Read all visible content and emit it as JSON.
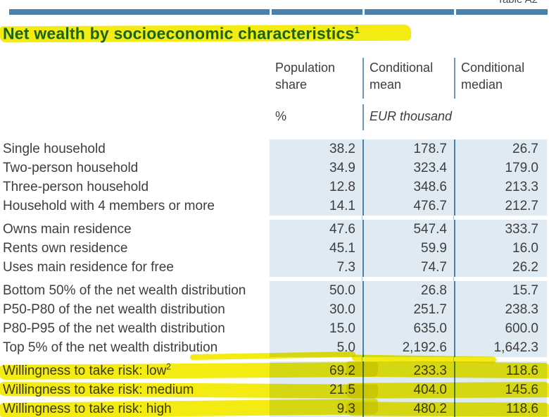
{
  "meta": {
    "table_ref": "Table A2"
  },
  "title": {
    "text": "Net wealth by socioeconomic characteristics",
    "footnote_marker": "1"
  },
  "header": {
    "columns": [
      {
        "label": "Population share"
      },
      {
        "label": "Conditional mean"
      },
      {
        "label": "Conditional median"
      }
    ],
    "units": {
      "population_share": "%",
      "amounts": "EUR thousand"
    }
  },
  "colors": {
    "accent_blue": "#4a81ab",
    "cell_shade_blue": "#dfeaf2",
    "divider_blue": "#6d98ba",
    "title_blue": "#1c6ca5",
    "text_gray": "#3e3e3d",
    "highlight_yellow": "#f3eb12"
  },
  "table": {
    "groups": [
      {
        "rows": [
          {
            "label": "Single household",
            "sup": "",
            "values": [
              "38.2",
              "178.7",
              "26.7"
            ],
            "highlight": false
          },
          {
            "label": "Two-person household",
            "sup": "",
            "values": [
              "34.9",
              "323.4",
              "179.0"
            ],
            "highlight": false
          },
          {
            "label": "Three-person household",
            "sup": "",
            "values": [
              "12.8",
              "348.6",
              "213.3"
            ],
            "highlight": false
          },
          {
            "label": "Household with 4 members or more",
            "sup": "",
            "values": [
              "14.1",
              "476.7",
              "212.7"
            ],
            "highlight": false
          }
        ]
      },
      {
        "rows": [
          {
            "label": "Owns main residence",
            "sup": "",
            "values": [
              "47.6",
              "547.4",
              "333.7"
            ],
            "highlight": false
          },
          {
            "label": "Rents own residence",
            "sup": "",
            "values": [
              "45.1",
              "59.9",
              "16.0"
            ],
            "highlight": false
          },
          {
            "label": "Uses main residence for free",
            "sup": "",
            "values": [
              "7.3",
              "74.7",
              "26.2"
            ],
            "highlight": false
          }
        ]
      },
      {
        "rows": [
          {
            "label": "Bottom 50% of the net wealth distribution",
            "sup": "",
            "values": [
              "50.0",
              "26.8",
              "15.7"
            ],
            "highlight": false
          },
          {
            "label": "P50-P80 of the net wealth distribution",
            "sup": "",
            "values": [
              "30.0",
              "251.7",
              "238.3"
            ],
            "highlight": false
          },
          {
            "label": "P80-P95 of the net wealth distribution",
            "sup": "",
            "values": [
              "15.0",
              "635.0",
              "600.0"
            ],
            "highlight": false
          },
          {
            "label": "Top 5% of the net wealth distribution",
            "sup": "",
            "values": [
              "5.0",
              "2,192.6",
              "1,642.3"
            ],
            "highlight": false
          }
        ]
      },
      {
        "rows": [
          {
            "label": "Willingness to take risk: low",
            "sup": "2",
            "values": [
              "69.2",
              "233.3",
              "118.6"
            ],
            "highlight": true
          },
          {
            "label": "Willingness to take risk: medium",
            "sup": "",
            "values": [
              "21.5",
              "404.0",
              "145.6"
            ],
            "highlight": true
          },
          {
            "label": "Willingness to take risk: high",
            "sup": "",
            "values": [
              "9.3",
              "480.2",
              "118.6"
            ],
            "highlight": true
          }
        ]
      }
    ]
  }
}
